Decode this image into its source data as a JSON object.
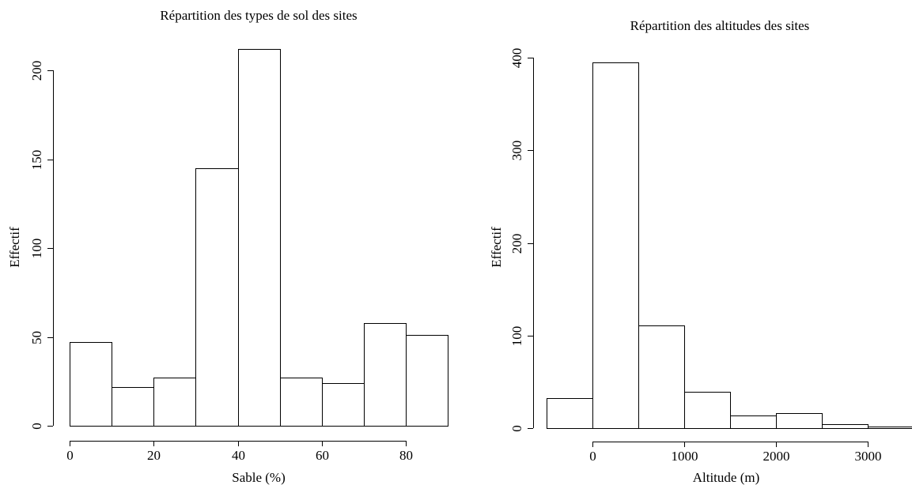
{
  "chart_data": [
    {
      "type": "bar",
      "title": "Répartition des types de sol des sites",
      "xlabel": "Sable (%)",
      "ylabel": "Effectif",
      "bins": [
        [
          0,
          10
        ],
        [
          10,
          20
        ],
        [
          20,
          30
        ],
        [
          30,
          40
        ],
        [
          40,
          50
        ],
        [
          50,
          60
        ],
        [
          60,
          70
        ],
        [
          70,
          80
        ],
        [
          80,
          90
        ]
      ],
      "values": [
        47,
        22,
        27,
        145,
        212,
        27,
        24,
        58,
        51
      ],
      "xticks": [
        0,
        20,
        40,
        60,
        80
      ],
      "yticks": [
        0,
        50,
        100,
        150,
        200
      ],
      "xlim": [
        0,
        80
      ],
      "ylim": [
        0,
        200
      ]
    },
    {
      "type": "bar",
      "title": "Répartition des altitudes des sites",
      "xlabel": "Altitude (m)",
      "ylabel": "Effectif",
      "bins": [
        [
          -500,
          0
        ],
        [
          0,
          500
        ],
        [
          500,
          1000
        ],
        [
          1000,
          1500
        ],
        [
          1500,
          2000
        ],
        [
          2000,
          2500
        ],
        [
          2500,
          3000
        ],
        [
          3000,
          3500
        ]
      ],
      "values": [
        32,
        395,
        111,
        39,
        14,
        16,
        4,
        2
      ],
      "xticks": [
        0,
        1000,
        2000,
        3000
      ],
      "yticks": [
        0,
        100,
        200,
        300,
        400
      ],
      "xlim": [
        0,
        3500
      ],
      "ylim": [
        0,
        400
      ]
    }
  ]
}
